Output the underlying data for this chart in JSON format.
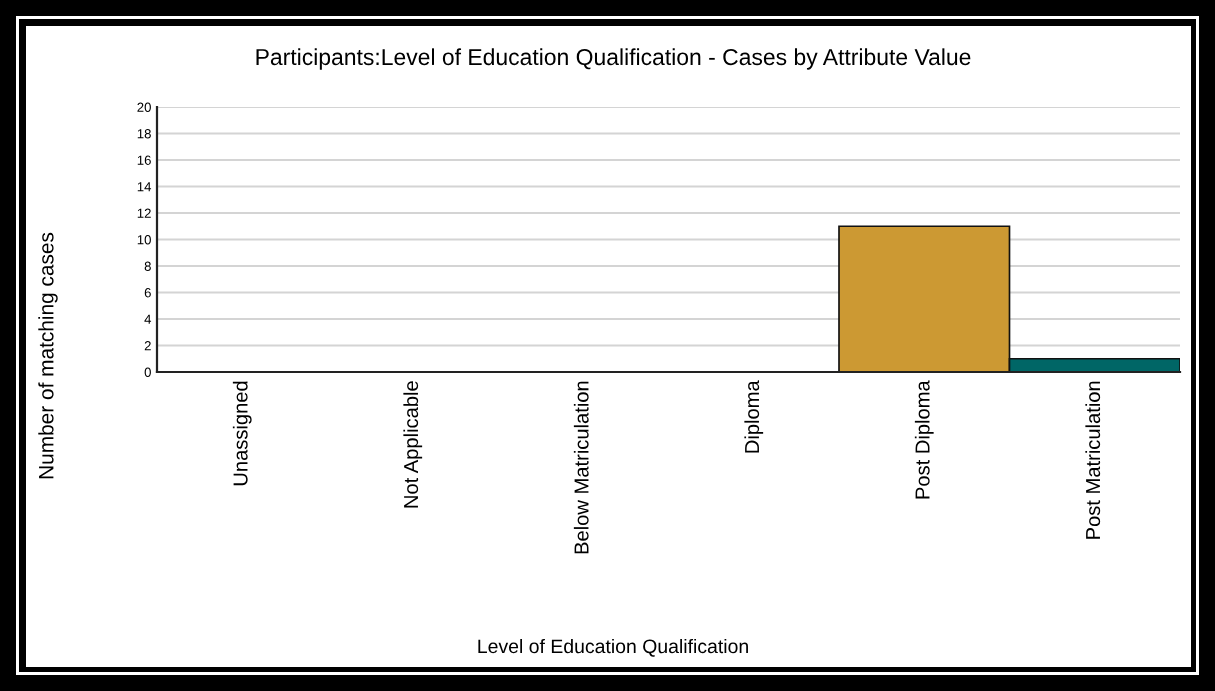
{
  "chart_data": {
    "type": "bar",
    "title": "Participants:Level of Education Qualification - Cases by Attribute Value",
    "xlabel": "Level of Education Qualification",
    "ylabel": "Number of matching cases",
    "categories": [
      "Unassigned",
      "Not Applicable",
      "Below Matriculation",
      "Diploma",
      "Post Diploma",
      "Post Matriculation"
    ],
    "values": [
      0,
      0,
      0,
      0,
      11,
      1
    ],
    "colors": [
      null,
      null,
      null,
      null,
      "#cc9933",
      "#006666"
    ],
    "ylim": [
      0,
      20
    ],
    "yticks": [
      0,
      2,
      4,
      6,
      8,
      10,
      12,
      14,
      16,
      18,
      20
    ],
    "grid": "y",
    "legend": false
  }
}
